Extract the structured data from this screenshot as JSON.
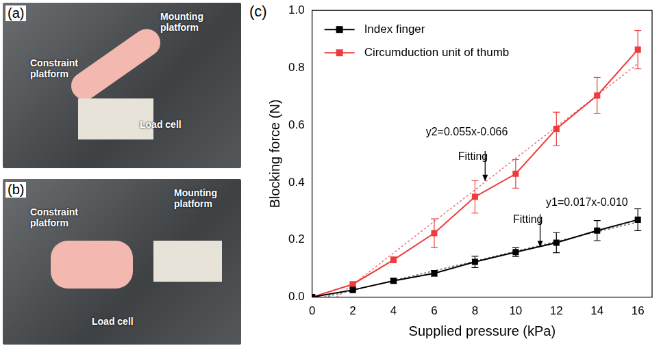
{
  "photos": [
    {
      "letter": "(a)",
      "labels": [
        "Mounting platform",
        "Constraint platform",
        "Load cell"
      ]
    },
    {
      "letter": "(b)",
      "labels": [
        "Mounting platform",
        "Constraint platform",
        "Load cell"
      ]
    }
  ],
  "chart_data": {
    "type": "line",
    "panel": "(c)",
    "x_label": "Supplied pressure (kPa)",
    "y_label": "Blocking force (N)",
    "xlim": [
      0,
      16.7
    ],
    "xticks": [
      0,
      2,
      4,
      6,
      8,
      10,
      12,
      14,
      16
    ],
    "ylim": [
      0,
      1
    ],
    "yticks": [
      {
        "value": 0,
        "label": "0.0"
      },
      0.2,
      0.4,
      0.6,
      0.8,
      {
        "value": 1,
        "label": "1.0"
      }
    ],
    "grid": false,
    "legend": "top left",
    "series": [
      {
        "name": "Index finger",
        "color": "#000000",
        "marker": "square",
        "line_style": "solid",
        "x": [
          0,
          2,
          4,
          6,
          8,
          10,
          12,
          14,
          16
        ],
        "values": [
          0,
          0.025,
          0.057,
          0.083,
          0.123,
          0.157,
          0.19,
          0.232,
          0.27
        ],
        "error": [
          0,
          0.005,
          0.008,
          0.01,
          0.02,
          0.015,
          0.035,
          0.035,
          0.038
        ]
      },
      {
        "name": "Circumduction unit of thumb",
        "color": "#ee3b3b",
        "marker": "square",
        "line_style": "solid",
        "x": [
          0,
          2,
          4,
          6,
          8,
          10,
          12,
          14,
          16
        ],
        "values": [
          0,
          0.045,
          0.13,
          0.223,
          0.35,
          0.43,
          0.587,
          0.703,
          0.863
        ],
        "error": [
          0,
          0.005,
          0.01,
          0.05,
          0.057,
          0.05,
          0.058,
          0.063,
          0.067
        ]
      },
      {
        "color": "#f07070",
        "line_style": "dotted",
        "x": [
          1.2,
          16
        ],
        "values": [
          0,
          0.814
        ]
      },
      {
        "color": "#666666",
        "line_style": "dotted",
        "x": [
          0.6,
          16
        ],
        "values": [
          0,
          0.262
        ]
      }
    ],
    "annotations": [
      {
        "text": "y2=0.055x-0.066",
        "x": 7.6,
        "y": 0.575
      },
      {
        "text": "Fitting",
        "x": 7.9,
        "y": 0.49,
        "arrow_to": [
          8.5,
          0.405
        ]
      },
      {
        "text": "y1=0.017x-0.010",
        "x": 13.5,
        "y": 0.33
      },
      {
        "text": "Fitting",
        "x": 10.6,
        "y": 0.27,
        "arrow_to": [
          11.2,
          0.175
        ]
      }
    ]
  }
}
